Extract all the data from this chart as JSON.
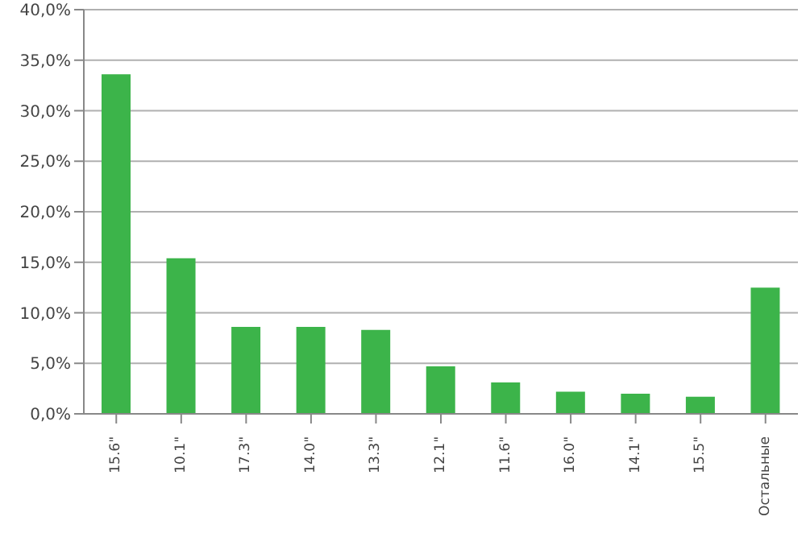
{
  "chart_data": {
    "type": "bar",
    "categories": [
      "15.6\"",
      "10.1\"",
      "17.3\"",
      "14.0\"",
      "13.3\"",
      "12.1\"",
      "11.6\"",
      "16.0\"",
      "14.1\"",
      "15.5\"",
      "Остальные"
    ],
    "values": [
      33.6,
      15.4,
      8.6,
      8.6,
      8.3,
      4.7,
      3.1,
      2.2,
      2.0,
      1.7,
      12.5
    ],
    "color": "#3cb44a",
    "ylim": [
      0,
      40
    ],
    "yticks": [
      {
        "value": 0,
        "label": "0,0%"
      },
      {
        "value": 5,
        "label": "5,0%"
      },
      {
        "value": 10,
        "label": "10,0%"
      },
      {
        "value": 15,
        "label": "15,0%"
      },
      {
        "value": 20,
        "label": "20,0%"
      },
      {
        "value": 25,
        "label": "25,0%"
      },
      {
        "value": 30,
        "label": "30,0%"
      },
      {
        "value": 35,
        "label": "35,0%"
      },
      {
        "value": 40,
        "label": "40,0%"
      }
    ],
    "grid": "y"
  }
}
